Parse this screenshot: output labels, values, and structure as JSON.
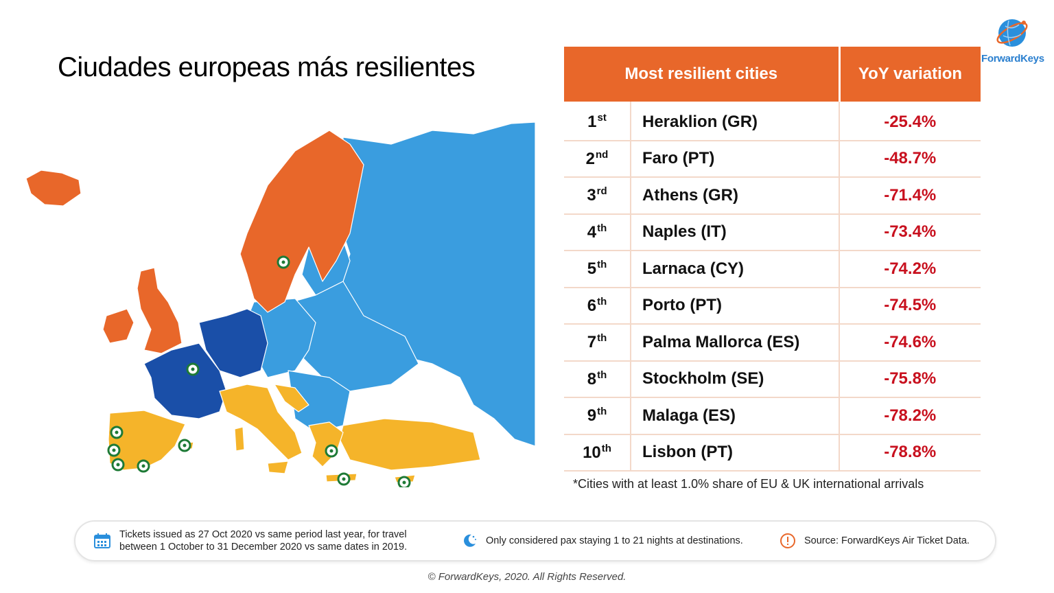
{
  "title": "Ciudades europeas más resilientes",
  "logo": {
    "name": "ForwardKeys",
    "icon": "globe-icon"
  },
  "table": {
    "header_city": "Most resilient cities",
    "header_yoy": "YoY variation",
    "rows": [
      {
        "rank": "1",
        "suffix": "st",
        "city": "Heraklion (GR)",
        "yoy": "-25.4%"
      },
      {
        "rank": "2",
        "suffix": "nd",
        "city": "Faro (PT)",
        "yoy": "-48.7%"
      },
      {
        "rank": "3",
        "suffix": "rd",
        "city": "Athens (GR)",
        "yoy": "-71.4%"
      },
      {
        "rank": "4",
        "suffix": "th",
        "city": "Naples (IT)",
        "yoy": "-73.4%"
      },
      {
        "rank": "5",
        "suffix": "th",
        "city": "Larnaca (CY)",
        "yoy": "-74.2%"
      },
      {
        "rank": "6",
        "suffix": "th",
        "city": "Porto (PT)",
        "yoy": "-74.5%"
      },
      {
        "rank": "7",
        "suffix": "th",
        "city": "Palma Mallorca (ES)",
        "yoy": "-74.6%"
      },
      {
        "rank": "8",
        "suffix": "th",
        "city": "Stockholm (SE)",
        "yoy": "-75.8%"
      },
      {
        "rank": "9",
        "suffix": "th",
        "city": "Malaga (ES)",
        "yoy": "-78.2%"
      },
      {
        "rank": "10",
        "suffix": "th",
        "city": "Lisbon (PT)",
        "yoy": "-78.8%"
      }
    ]
  },
  "footnote": "*Cities with at least 1.0% share of EU & UK international arrivals",
  "info": {
    "tickets_line1": "Tickets issued as 27 Oct 2020 vs same period last year, for travel",
    "tickets_line2": "between 1 October to 31 December 2020 vs same dates in 2019.",
    "pax": "Only considered pax staying 1 to 21 nights at destinations.",
    "source": "Source: ForwardKeys Air Ticket Data."
  },
  "copyright": "© ForwardKeys, 2020. All Rights Reserved.",
  "colors": {
    "orange": "#e8672a",
    "light_blue": "#3a9ddf",
    "dark_blue": "#1a4fa8",
    "yellow": "#f5b42a",
    "marker_green": "#1e7a36",
    "yoy_red": "#c8101e"
  }
}
